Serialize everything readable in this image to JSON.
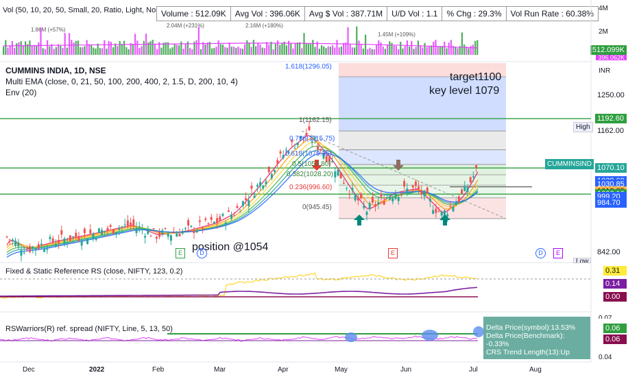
{
  "volume_panel": {
    "header": "Vol (50, 10, 20, 50, Small, 20, Ratio, Light, Normal, Top Right)",
    "stats": [
      {
        "label": "Volume : 512.09K"
      },
      {
        "label": "Avg Vol : 396.06K"
      },
      {
        "label": "Avg $ Vol : 387.71M"
      },
      {
        "label": "U/D Vol : 1.1"
      },
      {
        "label": "% Chg : 29.3%"
      },
      {
        "label": "Vol Run Rate : 60.38%"
      }
    ],
    "annotations": [
      "1.86M (+57%)",
      "2.04M (+231%)",
      "2.16M (+180%)",
      "1.45M (+109%)"
    ],
    "axis": [
      "4M",
      "2M"
    ],
    "last_label": "512.099K",
    "avg_label": "396.062K"
  },
  "main_panel": {
    "symbol_line": "CUMMINS INDIA, 1D, NSE",
    "ema_line": "Multi EMA (close, 0, 21, 50, 100, 200, 400, 2, 1.5, D, 200, 10, 4)",
    "env_line": "Env (20)",
    "currency": "INR",
    "fib_levels": [
      {
        "label": "1.618(1296.05)",
        "value": 1296.05
      },
      {
        "label": "1(1162.15)",
        "value": 1162.15
      },
      {
        "label": "0.786(1115.75)",
        "value": 1115.75
      },
      {
        "label": "0.618(1079.35)",
        "value": 1079.35
      },
      {
        "label": "0.5(1053.80)",
        "value": 1053.8
      },
      {
        "label": "0.382(1028.20)",
        "value": 1028.2
      },
      {
        "label": "0.236(996.60)",
        "value": 996.6
      },
      {
        "label": "0(945.45)",
        "value": 945.45
      }
    ],
    "annotation_target": "target1100",
    "annotation_key": "key level 1079",
    "annotation_position": "position @1054",
    "high_label": "High",
    "low_label": "Low",
    "price_labels": [
      {
        "text": "1250.00",
        "value": 1250,
        "bg": "",
        "fg": "#131722"
      },
      {
        "text": "1192.60",
        "value": 1192.6,
        "bg": "#2e9e3f",
        "fg": "#ffffff"
      },
      {
        "text": "1162.00",
        "value": 1162,
        "bg": "",
        "fg": "#131722"
      },
      {
        "text": "1070.70",
        "value": 1070.7,
        "bg": "#2e9e3f",
        "fg": "#ffffff"
      },
      {
        "text": "1070.10",
        "value": 1070.1,
        "bg": "#26a69a",
        "fg": "#ffffff"
      },
      {
        "text": "1038.60",
        "value": 1038.6,
        "bg": "#2962ff",
        "fg": "#ffffff"
      },
      {
        "text": "1030.85",
        "value": 1030.85,
        "bg": "#2962ff",
        "fg": "#ffffff"
      },
      {
        "text": "1013.45",
        "value": 1013.45,
        "bg": "#7b1fa2",
        "fg": "#ffffff"
      },
      {
        "text": "1013.25",
        "value": 1013.25,
        "bg": "#ffb74d",
        "fg": "#131722"
      },
      {
        "text": "1006.10",
        "value": 1006.1,
        "bg": "#2e9e3f",
        "fg": "#ffffff"
      },
      {
        "text": "999.55",
        "value": 999.55,
        "bg": "#2962ff",
        "fg": "#ffffff"
      },
      {
        "text": "999.20",
        "value": 999.2,
        "bg": "#2962ff",
        "fg": "#ffffff"
      },
      {
        "text": "984.70",
        "value": 984.7,
        "bg": "#2962ff",
        "fg": "#ffffff"
      },
      {
        "text": "842.00",
        "value": 842,
        "bg": "",
        "fg": "#131722"
      }
    ],
    "symbol_badge": "CUMMINSIND",
    "events": [
      "E",
      "D",
      "E",
      "D",
      "E"
    ]
  },
  "rs_panel": {
    "header": "Fixed & Static Reference RS (close, NIFTY, 123, 0.2)",
    "labels": [
      {
        "text": "0.31",
        "bg": "#ffeb3b",
        "fg": "#131722"
      },
      {
        "text": "0.14",
        "bg": "#7b1fa2",
        "fg": "#ffffff"
      },
      {
        "text": "0.00",
        "bg": "#880e4f",
        "fg": "#ffffff"
      }
    ]
  },
  "spread_panel": {
    "header": "RSWarriors(R) ref. spread (NIFTY, Line, 5, 13, 50)",
    "axis_top": "0.07",
    "axis_bottom": "0.04",
    "labels": [
      {
        "text": "0.06",
        "bg": "#2e9e3f",
        "fg": "#ffffff"
      },
      {
        "text": "0.06",
        "bg": "#880e4f",
        "fg": "#ffffff"
      }
    ],
    "tooltip": [
      "Delta Price(symbol):13.53%",
      "Delta Price(Benchmark): -0.33%",
      "CRS Trend Length(13):Up"
    ]
  },
  "x_axis": {
    "ticks": [
      {
        "label": "Dec"
      },
      {
        "label": "2022"
      },
      {
        "label": "Feb"
      },
      {
        "label": "Mar"
      },
      {
        "label": "Apr"
      },
      {
        "label": "May"
      },
      {
        "label": "Jun"
      },
      {
        "label": "Jul"
      },
      {
        "label": "Aug"
      }
    ]
  },
  "chart_data": {
    "type": "candlestick",
    "title": "CUMMINS INDIA, 1D, NSE",
    "currency": "INR",
    "ylim": [
      842,
      1330
    ],
    "x_range": [
      "Nov 2021",
      "Aug 2022"
    ],
    "price_path": [
      {
        "date": "2021-11-22",
        "close": 900
      },
      {
        "date": "2021-12-01",
        "close": 870
      },
      {
        "date": "2021-12-15",
        "close": 890
      },
      {
        "date": "2022-01-03",
        "close": 910
      },
      {
        "date": "2022-01-20",
        "close": 930
      },
      {
        "date": "2022-02-01",
        "close": 905
      },
      {
        "date": "2022-02-15",
        "close": 915
      },
      {
        "date": "2022-03-01",
        "close": 935
      },
      {
        "date": "2022-03-10",
        "close": 960
      },
      {
        "date": "2022-03-22",
        "close": 1030
      },
      {
        "date": "2022-04-05",
        "close": 1120
      },
      {
        "date": "2022-04-14",
        "close": 1155
      },
      {
        "date": "2022-04-25",
        "close": 1090
      },
      {
        "date": "2022-05-05",
        "close": 1010
      },
      {
        "date": "2022-05-12",
        "close": 965
      },
      {
        "date": "2022-05-25",
        "close": 1010
      },
      {
        "date": "2022-06-05",
        "close": 1020
      },
      {
        "date": "2022-06-17",
        "close": 955
      },
      {
        "date": "2022-06-27",
        "close": 1005
      },
      {
        "date": "2022-07-04",
        "close": 1070
      }
    ],
    "horizontal_levels": [
      1192.6,
      1070.7,
      1006.1
    ],
    "target": 1100,
    "key_level": 1079,
    "position": 1054
  }
}
